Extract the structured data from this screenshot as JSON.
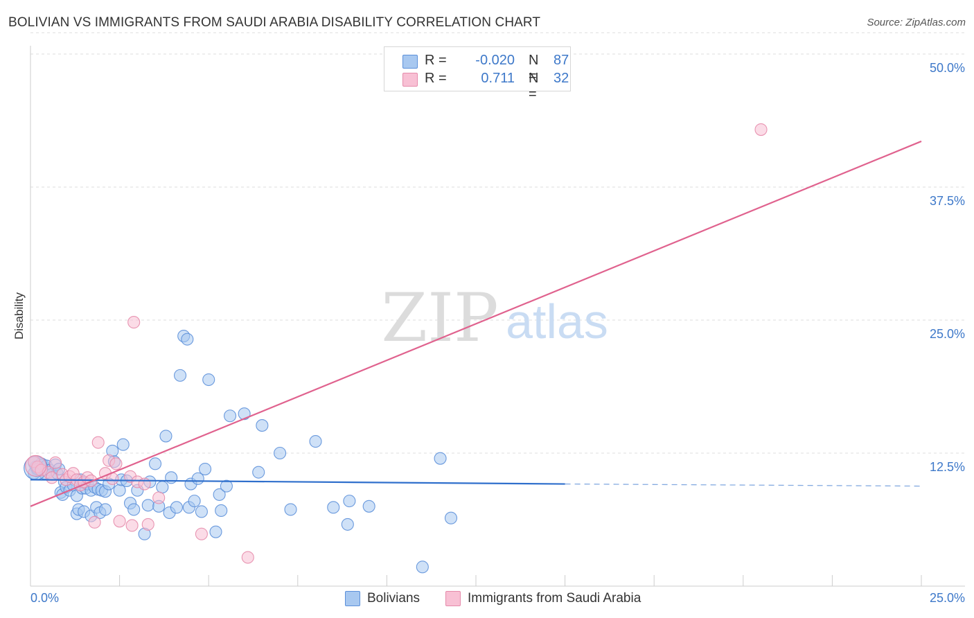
{
  "title": "BOLIVIAN VS IMMIGRANTS FROM SAUDI ARABIA DISABILITY CORRELATION CHART",
  "source": "Source: ZipAtlas.com",
  "watermark": {
    "zip": "ZIP",
    "atlas": "atlas"
  },
  "correlation_box": {
    "rows": [
      {
        "r_label": "R =",
        "r_value": "-0.020",
        "n_label": "N =",
        "n_value": "87"
      },
      {
        "r_label": "R =",
        "r_value": "0.711",
        "n_label": "N =",
        "n_value": "32"
      }
    ]
  },
  "legend": {
    "items": [
      "Bolivians",
      "Immigrants from Saudi Arabia"
    ]
  },
  "colors": {
    "blue_fill": "#a8c8f0",
    "blue_stroke": "#5b8fd9",
    "blue_line": "#2f6fcc",
    "pink_fill": "#f8c0d4",
    "pink_stroke": "#e58aaa",
    "pink_line": "#e0628e",
    "tick_label": "#3d78c9",
    "grid": "#dedede",
    "axis": "#cccccc"
  },
  "chart_data": {
    "type": "scatter",
    "title": "BOLIVIAN VS IMMIGRANTS FROM SAUDI ARABIA DISABILITY CORRELATION CHART",
    "xlabel": "",
    "ylabel": "Disability",
    "xlim": [
      0,
      25
    ],
    "ylim": [
      0,
      50
    ],
    "x_tick_labels": [
      "0.0%",
      "25.0%"
    ],
    "y_ticks": [
      12.5,
      25.0,
      37.5,
      50.0
    ],
    "y_tick_labels": [
      "12.5%",
      "25.0%",
      "37.5%",
      "50.0%"
    ],
    "grid": true,
    "series": [
      {
        "name": "Bolivians",
        "r": -0.02,
        "n": 87,
        "trend": {
          "x0": 0,
          "y0": 10.0,
          "x1": 15,
          "y1": 9.6,
          "dash_to_x": 25,
          "dash_to_y": 9.4
        },
        "points": [
          [
            0.1,
            11.6
          ],
          [
            0.15,
            11.2
          ],
          [
            0.2,
            10.8
          ],
          [
            0.25,
            11.0
          ],
          [
            0.3,
            11.5
          ],
          [
            0.35,
            11.4
          ],
          [
            0.4,
            10.6
          ],
          [
            0.45,
            11.3
          ],
          [
            0.55,
            10.9
          ],
          [
            0.6,
            10.5
          ],
          [
            0.7,
            11.4
          ],
          [
            0.75,
            10.6
          ],
          [
            0.8,
            11.0
          ],
          [
            0.85,
            8.8
          ],
          [
            0.9,
            8.6
          ],
          [
            0.95,
            9.8
          ],
          [
            1.0,
            9.3
          ],
          [
            1.1,
            9.0
          ],
          [
            1.2,
            9.5
          ],
          [
            1.3,
            8.5
          ],
          [
            1.4,
            10.0
          ],
          [
            1.45,
            9.2
          ],
          [
            1.5,
            9.7
          ],
          [
            1.55,
            9.2
          ],
          [
            1.6,
            9.6
          ],
          [
            1.7,
            9.0
          ],
          [
            1.8,
            9.3
          ],
          [
            1.9,
            9.1
          ],
          [
            2.0,
            9.0
          ],
          [
            2.1,
            8.9
          ],
          [
            1.3,
            6.8
          ],
          [
            1.35,
            7.2
          ],
          [
            1.5,
            7.0
          ],
          [
            1.7,
            6.6
          ],
          [
            1.85,
            7.4
          ],
          [
            1.95,
            6.9
          ],
          [
            2.1,
            7.2
          ],
          [
            2.2,
            9.6
          ],
          [
            2.3,
            12.7
          ],
          [
            2.35,
            11.7
          ],
          [
            2.5,
            9.0
          ],
          [
            2.55,
            10.0
          ],
          [
            2.6,
            13.3
          ],
          [
            2.7,
            9.9
          ],
          [
            2.8,
            7.8
          ],
          [
            2.9,
            7.2
          ],
          [
            3.0,
            9.0
          ],
          [
            3.2,
            4.9
          ],
          [
            3.3,
            7.6
          ],
          [
            3.35,
            9.8
          ],
          [
            3.5,
            11.5
          ],
          [
            3.6,
            7.5
          ],
          [
            3.7,
            9.3
          ],
          [
            3.8,
            14.1
          ],
          [
            3.9,
            6.9
          ],
          [
            3.95,
            10.2
          ],
          [
            4.1,
            7.4
          ],
          [
            4.2,
            19.8
          ],
          [
            4.3,
            23.5
          ],
          [
            4.4,
            23.2
          ],
          [
            4.45,
            7.4
          ],
          [
            4.5,
            9.6
          ],
          [
            4.6,
            8.0
          ],
          [
            4.7,
            10.1
          ],
          [
            4.8,
            7.0
          ],
          [
            4.9,
            11.0
          ],
          [
            5.0,
            19.4
          ],
          [
            5.2,
            5.1
          ],
          [
            5.3,
            8.6
          ],
          [
            5.35,
            7.1
          ],
          [
            5.5,
            9.4
          ],
          [
            5.6,
            16.0
          ],
          [
            6.0,
            16.2
          ],
          [
            6.4,
            10.7
          ],
          [
            6.5,
            15.1
          ],
          [
            7.0,
            12.5
          ],
          [
            7.3,
            7.2
          ],
          [
            8.0,
            13.6
          ],
          [
            8.5,
            7.4
          ],
          [
            8.9,
            5.8
          ],
          [
            8.95,
            8.0
          ],
          [
            9.5,
            7.5
          ],
          [
            11.0,
            1.8
          ],
          [
            11.5,
            12.0
          ],
          [
            11.8,
            6.4
          ],
          [
            0.1,
            10.6
          ],
          [
            0.2,
            11.0
          ]
        ]
      },
      {
        "name": "Immigrants from Saudi Arabia",
        "r": 0.711,
        "n": 32,
        "trend": {
          "x0": 0,
          "y0": 7.5,
          "x1": 25,
          "y1": 41.8
        },
        "points": [
          [
            0.1,
            11.7
          ],
          [
            0.2,
            11.2
          ],
          [
            0.3,
            10.9
          ],
          [
            0.5,
            10.7
          ],
          [
            0.6,
            10.2
          ],
          [
            0.7,
            11.6
          ],
          [
            0.9,
            10.5
          ],
          [
            1.0,
            10.0
          ],
          [
            1.1,
            10.3
          ],
          [
            1.2,
            10.6
          ],
          [
            1.3,
            10.0
          ],
          [
            1.4,
            9.5
          ],
          [
            1.5,
            9.8
          ],
          [
            1.6,
            10.2
          ],
          [
            1.7,
            9.9
          ],
          [
            1.8,
            6.0
          ],
          [
            1.9,
            13.5
          ],
          [
            2.1,
            10.6
          ],
          [
            2.2,
            11.8
          ],
          [
            2.3,
            10.1
          ],
          [
            2.4,
            11.5
          ],
          [
            2.5,
            6.1
          ],
          [
            2.8,
            10.3
          ],
          [
            2.85,
            5.7
          ],
          [
            2.9,
            24.8
          ],
          [
            3.0,
            9.8
          ],
          [
            3.2,
            9.6
          ],
          [
            3.3,
            5.8
          ],
          [
            3.6,
            8.3
          ],
          [
            4.8,
            4.9
          ],
          [
            6.1,
            2.7
          ],
          [
            20.5,
            42.9
          ]
        ]
      }
    ]
  }
}
